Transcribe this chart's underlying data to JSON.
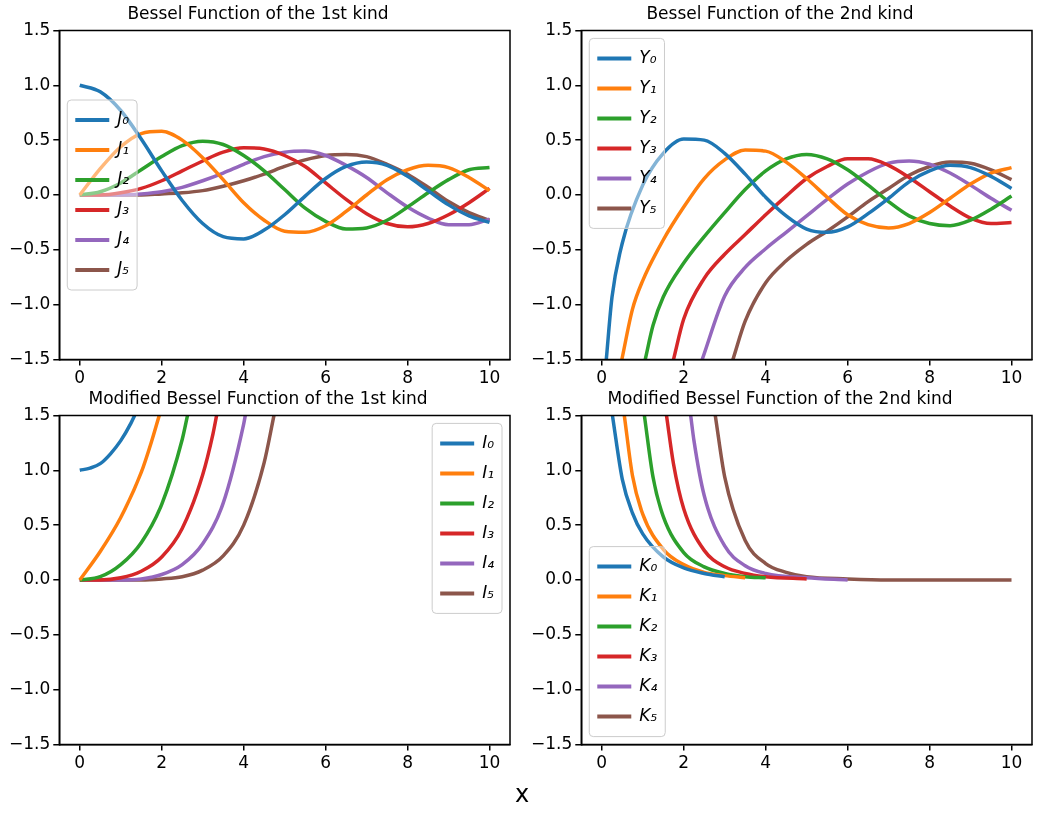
{
  "chart_data": [
    {
      "type": "line",
      "title": "Bessel Function of the 1st kind",
      "x": [
        0,
        0.5,
        1,
        1.5,
        2,
        2.5,
        3,
        3.5,
        4,
        4.5,
        5,
        5.5,
        6,
        6.5,
        7,
        7.5,
        8,
        8.5,
        9,
        9.5,
        10
      ],
      "xlim": [
        -0.5,
        10.5
      ],
      "xticks": [
        0,
        2,
        4,
        6,
        8,
        10
      ],
      "ylim": [
        -1.5,
        1.5
      ],
      "yticks": [
        {
          "value": -1.5,
          "label": "−1.5"
        },
        {
          "value": -1,
          "label": "−1.0"
        },
        {
          "value": -0.5,
          "label": "−0.5"
        },
        {
          "value": 0,
          "label": "0.0"
        },
        {
          "value": 0.5,
          "label": "0.5"
        },
        {
          "value": 1,
          "label": "1.0"
        },
        {
          "value": 1.5,
          "label": "1.5"
        }
      ],
      "legend": "left",
      "series": [
        {
          "name": "J₀",
          "color": "#1f77b4",
          "values": [
            1,
            0.94,
            0.77,
            0.51,
            0.22,
            -0.05,
            -0.26,
            -0.38,
            -0.4,
            -0.32,
            -0.18,
            -0.01,
            0.15,
            0.26,
            0.3,
            0.27,
            0.17,
            0.04,
            -0.09,
            -0.19,
            -0.25
          ]
        },
        {
          "name": "J₁",
          "color": "#ff7f0e",
          "values": [
            0,
            0.24,
            0.44,
            0.56,
            0.58,
            0.5,
            0.34,
            0.14,
            -0.07,
            -0.23,
            -0.33,
            -0.34,
            -0.28,
            -0.15,
            0,
            0.14,
            0.23,
            0.27,
            0.25,
            0.16,
            0.04
          ]
        },
        {
          "name": "J₂",
          "color": "#2ca02c",
          "values": [
            0,
            0.03,
            0.11,
            0.23,
            0.35,
            0.45,
            0.49,
            0.46,
            0.36,
            0.22,
            0.05,
            -0.12,
            -0.24,
            -0.31,
            -0.3,
            -0.23,
            -0.11,
            0.02,
            0.14,
            0.23,
            0.25
          ]
        },
        {
          "name": "J₃",
          "color": "#d62728",
          "values": [
            0,
            0,
            0.02,
            0.06,
            0.13,
            0.22,
            0.31,
            0.39,
            0.43,
            0.42,
            0.36,
            0.26,
            0.11,
            -0.04,
            -0.17,
            -0.26,
            -0.29,
            -0.26,
            -0.18,
            -0.07,
            0.06
          ]
        },
        {
          "name": "J₄",
          "color": "#9467bd",
          "values": [
            0,
            0,
            0,
            0.01,
            0.03,
            0.07,
            0.13,
            0.2,
            0.28,
            0.35,
            0.39,
            0.4,
            0.36,
            0.27,
            0.16,
            0.02,
            -0.11,
            -0.21,
            -0.27,
            -0.27,
            -0.22
          ]
        },
        {
          "name": "J₅",
          "color": "#8c564b",
          "values": [
            0,
            0,
            0,
            0,
            0.01,
            0.02,
            0.04,
            0.08,
            0.13,
            0.19,
            0.26,
            0.32,
            0.36,
            0.37,
            0.35,
            0.28,
            0.19,
            0.07,
            -0.06,
            -0.16,
            -0.23
          ]
        }
      ]
    },
    {
      "type": "line",
      "title": "Bessel Function of the 2nd kind",
      "xlim": [
        -0.5,
        10.5
      ],
      "xticks": [
        0,
        2,
        4,
        6,
        8,
        10
      ],
      "ylim": [
        -1.5,
        1.5
      ],
      "yticks": [
        {
          "value": -1.5,
          "label": "−1.5"
        },
        {
          "value": -1,
          "label": "−1.0"
        },
        {
          "value": -0.5,
          "label": "−0.5"
        },
        {
          "value": 0,
          "label": "0.0"
        },
        {
          "value": 0.5,
          "label": "0.5"
        },
        {
          "value": 1,
          "label": "1.0"
        },
        {
          "value": 1.5,
          "label": "1.5"
        }
      ],
      "legend": "top left",
      "series": [
        {
          "name": "Y₀",
          "color": "#1f77b4",
          "x": [
            0.11,
            0.25,
            0.5,
            1,
            1.5,
            2,
            2.5,
            3,
            3.5,
            4,
            4.5,
            5,
            5.5,
            6,
            6.5,
            7,
            7.5,
            8,
            8.5,
            9,
            9.5,
            10
          ],
          "values": [
            -1.5,
            -0.93,
            -0.44,
            0.09,
            0.38,
            0.51,
            0.5,
            0.38,
            0.19,
            -0.02,
            -0.19,
            -0.31,
            -0.34,
            -0.29,
            -0.17,
            -0.03,
            0.12,
            0.22,
            0.27,
            0.25,
            0.17,
            0.06
          ]
        },
        {
          "name": "Y₁",
          "color": "#ff7f0e",
          "x": [
            0.49,
            0.75,
            1,
            1.5,
            2,
            2.5,
            3,
            3.5,
            4,
            4.5,
            5,
            5.5,
            6,
            6.5,
            7,
            7.5,
            8,
            8.5,
            9,
            9.5,
            10
          ],
          "values": [
            -1.5,
            -1.04,
            -0.78,
            -0.41,
            -0.11,
            0.15,
            0.32,
            0.41,
            0.4,
            0.3,
            0.15,
            -0.02,
            -0.18,
            -0.27,
            -0.3,
            -0.26,
            -0.16,
            -0.03,
            0.1,
            0.2,
            0.25
          ]
        },
        {
          "name": "Y₂",
          "color": "#2ca02c",
          "x": [
            1.06,
            1.25,
            1.5,
            2,
            2.5,
            3,
            3.5,
            4,
            4.5,
            5,
            5.5,
            6,
            6.5,
            7,
            7.5,
            8,
            8.5,
            9,
            9.5,
            10
          ],
          "values": [
            -1.5,
            -1.19,
            -0.93,
            -0.62,
            -0.38,
            -0.16,
            0.05,
            0.22,
            0.33,
            0.37,
            0.33,
            0.23,
            0.09,
            -0.06,
            -0.19,
            -0.26,
            -0.28,
            -0.23,
            -0.13,
            -0.01
          ]
        },
        {
          "name": "Y₃",
          "color": "#d62728",
          "x": [
            1.75,
            2,
            2.5,
            3,
            3.5,
            4,
            4.5,
            5,
            5.5,
            6,
            6.5,
            7,
            7.5,
            8,
            8.5,
            9,
            9.5,
            10
          ],
          "values": [
            -1.5,
            -1.13,
            -0.76,
            -0.54,
            -0.36,
            -0.18,
            -0.01,
            0.15,
            0.26,
            0.33,
            0.33,
            0.27,
            0.16,
            0.03,
            -0.1,
            -0.21,
            -0.26,
            -0.25
          ]
        },
        {
          "name": "Y₄",
          "color": "#9467bd",
          "x": [
            2.45,
            3,
            3.5,
            4,
            4.5,
            5,
            5.5,
            6,
            6.5,
            7,
            7.5,
            8,
            8.5,
            9,
            9.5,
            10
          ],
          "values": [
            -1.5,
            -0.92,
            -0.66,
            -0.49,
            -0.34,
            -0.19,
            -0.04,
            0.1,
            0.21,
            0.29,
            0.31,
            0.28,
            0.2,
            0.09,
            -0.03,
            -0.14
          ]
        },
        {
          "name": "Y₅",
          "color": "#8c564b",
          "x": [
            3.2,
            3.5,
            4,
            4.5,
            5,
            5.5,
            6,
            6.5,
            7,
            7.5,
            8,
            8.5,
            9,
            9.5,
            10
          ],
          "values": [
            -1.5,
            -1.15,
            -0.8,
            -0.6,
            -0.45,
            -0.33,
            -0.2,
            -0.06,
            0.06,
            0.18,
            0.26,
            0.3,
            0.29,
            0.23,
            0.14
          ]
        }
      ]
    },
    {
      "type": "line",
      "title": "Modified Bessel Function of the 1st kind",
      "xlabel": "x",
      "xlim": [
        -0.5,
        10.5
      ],
      "xticks": [
        0,
        2,
        4,
        6,
        8,
        10
      ],
      "ylim": [
        -1.5,
        1.5
      ],
      "yticks": [
        {
          "value": -1.5,
          "label": "−1.5"
        },
        {
          "value": -1,
          "label": "−1.0"
        },
        {
          "value": -0.5,
          "label": "−0.5"
        },
        {
          "value": 0,
          "label": "0.0"
        },
        {
          "value": 0.5,
          "label": "0.5"
        },
        {
          "value": 1,
          "label": "1.0"
        },
        {
          "value": 1.5,
          "label": "1.5"
        }
      ],
      "legend": "top right",
      "series": [
        {
          "name": "I₀",
          "color": "#1f77b4",
          "x": [
            0,
            0.25,
            0.5,
            0.75,
            1,
            1.25,
            1.34
          ],
          "values": [
            1,
            1.02,
            1.06,
            1.15,
            1.27,
            1.43,
            1.5
          ]
        },
        {
          "name": "I₁",
          "color": "#ff7f0e",
          "x": [
            0,
            0.5,
            1,
            1.5,
            1.75,
            1.94
          ],
          "values": [
            0,
            0.26,
            0.57,
            0.98,
            1.26,
            1.5
          ]
        },
        {
          "name": "I₂",
          "color": "#2ca02c",
          "x": [
            0,
            0.5,
            1,
            1.5,
            2,
            2.5,
            2.63
          ],
          "values": [
            0,
            0.03,
            0.14,
            0.34,
            0.69,
            1.28,
            1.5
          ]
        },
        {
          "name": "I₃",
          "color": "#d62728",
          "x": [
            0,
            0.5,
            1,
            1.5,
            2,
            2.5,
            3,
            3.25,
            3.34
          ],
          "values": [
            0,
            0,
            0.02,
            0.08,
            0.21,
            0.47,
            0.96,
            1.33,
            1.5
          ]
        },
        {
          "name": "I₄",
          "color": "#9467bd",
          "x": [
            0,
            1,
            1.5,
            2,
            2.5,
            3,
            3.5,
            4,
            4.04
          ],
          "values": [
            0,
            0,
            0.01,
            0.05,
            0.14,
            0.33,
            0.7,
            1.42,
            1.5
          ]
        },
        {
          "name": "I₅",
          "color": "#8c564b",
          "x": [
            0,
            1,
            1.5,
            2,
            2.5,
            3,
            3.5,
            4,
            4.5,
            4.74
          ],
          "values": [
            0,
            0,
            0,
            0.01,
            0.03,
            0.09,
            0.22,
            0.5,
            1.07,
            1.5
          ]
        }
      ]
    },
    {
      "type": "line",
      "title": "Modified Bessel Function of the 2nd kind",
      "xlim": [
        -0.5,
        10.5
      ],
      "xticks": [
        0,
        2,
        4,
        6,
        8,
        10
      ],
      "ylim": [
        -1.5,
        1.5
      ],
      "yticks": [
        {
          "value": -1.5,
          "label": "−1.5"
        },
        {
          "value": -1,
          "label": "−1.0"
        },
        {
          "value": -0.5,
          "label": "−0.5"
        },
        {
          "value": 0,
          "label": "0.0"
        },
        {
          "value": 0.5,
          "label": "0.5"
        },
        {
          "value": 1,
          "label": "1.0"
        },
        {
          "value": 1.5,
          "label": "1.5"
        }
      ],
      "legend": "bottom left",
      "series": [
        {
          "name": "K₀",
          "color": "#1f77b4",
          "x": [
            0.26,
            0.5,
            0.75,
            1,
            1.5,
            2,
            2.5,
            3
          ],
          "values": [
            1.5,
            0.92,
            0.61,
            0.42,
            0.21,
            0.11,
            0.06,
            0.03
          ]
        },
        {
          "name": "K₁",
          "color": "#ff7f0e",
          "x": [
            0.55,
            0.75,
            1,
            1.5,
            2,
            2.5,
            3,
            3.5
          ],
          "values": [
            1.5,
            0.95,
            0.6,
            0.28,
            0.14,
            0.07,
            0.04,
            0.02
          ]
        },
        {
          "name": "K₂",
          "color": "#2ca02c",
          "x": [
            1.04,
            1.25,
            1.5,
            2,
            2.5,
            3,
            3.5,
            4
          ],
          "values": [
            1.5,
            0.94,
            0.58,
            0.25,
            0.12,
            0.06,
            0.03,
            0.02
          ]
        },
        {
          "name": "K₃",
          "color": "#d62728",
          "x": [
            1.58,
            1.75,
            2,
            2.5,
            3,
            3.5,
            4,
            5
          ],
          "values": [
            1.5,
            1.06,
            0.65,
            0.27,
            0.12,
            0.06,
            0.03,
            0.01
          ]
        },
        {
          "name": "K₄",
          "color": "#9467bd",
          "x": [
            2.17,
            2.25,
            2.5,
            3,
            3.5,
            4,
            5,
            6
          ],
          "values": [
            1.5,
            1.27,
            0.77,
            0.31,
            0.13,
            0.06,
            0.02,
            0
          ]
        },
        {
          "name": "K₅",
          "color": "#8c564b",
          "x": [
            2.77,
            3,
            3.5,
            4,
            4.5,
            5,
            6,
            7,
            8,
            9,
            10
          ],
          "values": [
            1.5,
            0.94,
            0.36,
            0.15,
            0.07,
            0.03,
            0.01,
            0,
            0,
            0,
            0
          ]
        }
      ]
    }
  ]
}
